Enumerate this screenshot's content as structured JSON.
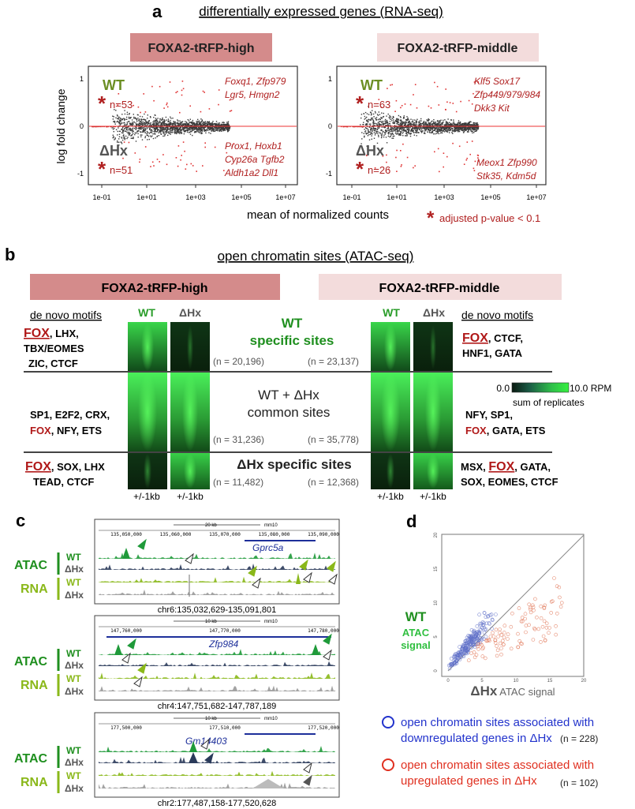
{
  "panel_a": {
    "letter": "a",
    "title": "differentially expressed genes (RNA-seq)",
    "ylabel": "log fold change",
    "xlabel": "mean of normalized counts",
    "pvalue_note": "adjusted p-value < 0.1",
    "x_ticks": [
      "1e-01",
      "1e+01",
      "1e+03",
      "1e+05",
      "1e+07"
    ],
    "y_ticks": [
      "1",
      "0",
      "-1"
    ],
    "wt_label": "WT",
    "hx_label": "ΔHx",
    "plots": [
      {
        "header": "FOXA2-tRFP-high",
        "header_color": "#d48b8b",
        "wt_n": "n=53",
        "hx_n": "n=51",
        "up_genes": [
          "Foxq1, Zfp979",
          "Lgr5, Hmgn2"
        ],
        "down_genes": [
          "Prox1, Hoxb1",
          "Cyp26a Tgfb2",
          "Aldh1a2 Dll1"
        ]
      },
      {
        "header": "FOXA2-tRFP-middle",
        "header_color": "#f3dcdc",
        "wt_n": "n=63",
        "hx_n": "n=26",
        "up_genes": [
          "Klf5  Sox17",
          "Zfp449/979/984",
          "Dkk3  Kit"
        ],
        "down_genes": [
          "Meox1  Zfp990",
          "Stk35, Kdm5d"
        ]
      }
    ]
  },
  "panel_b": {
    "letter": "b",
    "title": "open chromatin sites (ATAC-seq)",
    "header_high": "FOXA2-tRFP-high",
    "header_middle": "FOXA2-tRFP-middle",
    "col_wt": "WT",
    "col_hx": "ΔHx",
    "motifs_title": "de novo motifs",
    "row_wt_label": [
      "WT",
      "specific sites"
    ],
    "row_common_label": [
      "WT + ΔHx",
      "common sites"
    ],
    "row_hx_label": "ΔHx specific sites",
    "counts": {
      "wt_high": "(n = 20,196)",
      "wt_middle": "(n = 23,137)",
      "common_high": "(n = 31,236)",
      "common_middle": "(n = 35,778)",
      "hx_high": "(n = 11,482)",
      "hx_middle": "(n = 12,368)"
    },
    "motifs_left": {
      "wt": [
        "FOX, LHX,",
        "TBX/EOMES",
        "ZIC, CTCF"
      ],
      "common": [
        "SP1, E2F2, CRX,",
        "FOX, NFY, ETS"
      ],
      "hx": [
        "FOX, SOX, LHX",
        "TEAD, CTCF"
      ]
    },
    "motifs_right": {
      "wt": [
        "FOX, CTCF,",
        "HNF1, GATA"
      ],
      "common": [
        "NFY, SP1,",
        "FOX, GATA, ETS"
      ],
      "hx": [
        "MSX, FOX, GATA,",
        "SOX, EOMES, CTCF"
      ]
    },
    "window_label": "+/-1kb",
    "scale_min": "0.0",
    "scale_max": "10.0 RPM",
    "scale_caption": "sum of replicates"
  },
  "panel_c": {
    "letter": "c",
    "atac_label": "ATAC",
    "rna_label": "RNA",
    "wt_label": "WT",
    "hx_label": "ΔHx",
    "tracks": [
      {
        "scale": "20 kb",
        "genome": "mm10",
        "positions": [
          "135,050,000",
          "135,060,000",
          "135,070,000",
          "135,080,000",
          "135,090,000"
        ],
        "gene": "Gprc5a",
        "coords": "chr6:135,032,629-135,091,801"
      },
      {
        "scale": "10 kb",
        "genome": "mm10",
        "positions": [
          "147,760,000",
          "147,770,000",
          "147,780,000"
        ],
        "gene": "Zfp984",
        "coords": "chr4:147,751,682-147,787,189"
      },
      {
        "scale": "10 kb",
        "genome": "mm10",
        "positions": [
          "177,500,000",
          "177,510,000",
          "177,520,000"
        ],
        "gene": "Gm14403",
        "coords": "chr2:177,487,158-177,520,628"
      }
    ]
  },
  "panel_d": {
    "letter": "d",
    "y_label": [
      "WT",
      "ATAC",
      "signal"
    ],
    "x_label_bold": "ΔHx",
    "x_label_rest": " ATAC signal",
    "x_ticks": [
      "0",
      "5",
      "10",
      "15",
      "20"
    ],
    "y_ticks": [
      "0",
      "5",
      "10",
      "15",
      "20"
    ],
    "legend": [
      {
        "color": "#2233cc",
        "line1": "open chromatin sites associated with",
        "line2": "downregulated genes in ΔHx",
        "count": "(n = 228)"
      },
      {
        "color": "#e03020",
        "line1": "open chromatin sites associated with",
        "line2": "upregulated genes in ΔHx",
        "count": "(n = 102)"
      }
    ]
  }
}
